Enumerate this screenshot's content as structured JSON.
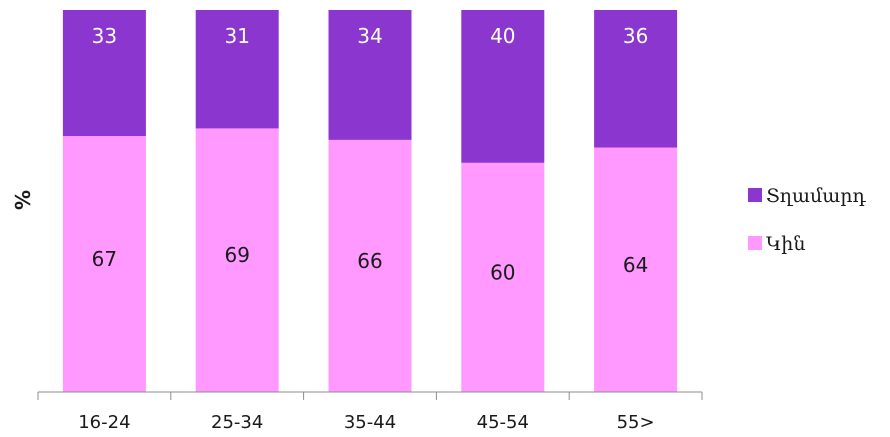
{
  "chart_data": {
    "type": "bar",
    "stacked": true,
    "categories": [
      "16-24",
      "25-34",
      "35-44",
      "45-54",
      "55>"
    ],
    "series": [
      {
        "name": "Կին",
        "values": [
          67,
          69,
          66,
          60,
          64
        ],
        "color": "#ff99ff",
        "label_color": "#1a1a1a"
      },
      {
        "name": "Տղամարդ",
        "values": [
          33,
          31,
          34,
          40,
          36
        ],
        "color": "#8b36cf",
        "label_color": "#ffffff"
      }
    ],
    "ylabel": "%",
    "xlabel": "",
    "ylim": [
      0,
      100
    ],
    "grid": false,
    "legend_position": "right"
  }
}
